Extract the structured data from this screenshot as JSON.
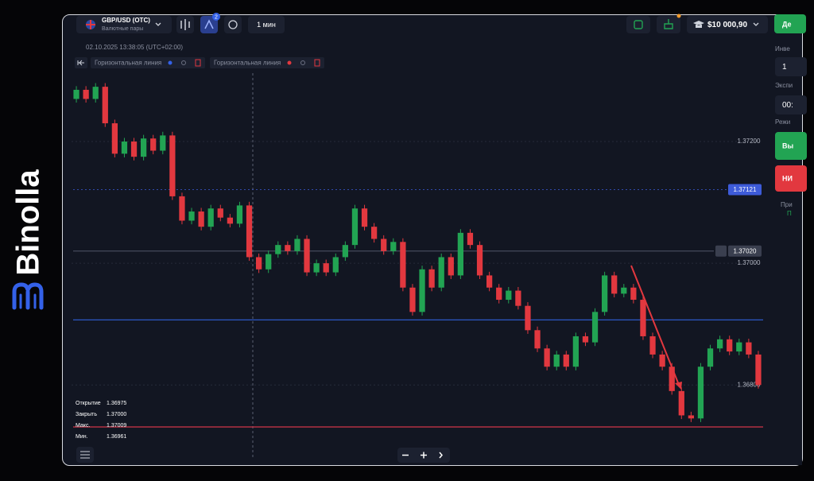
{
  "brand": {
    "name": "Binolla"
  },
  "top_bar": {
    "pair": "GBP/USD (OTC)",
    "pair_group": "Валютные пары",
    "badge": "2",
    "timeframe": "1 мин",
    "balance": "$10 000,90",
    "account_button": "Де"
  },
  "chart_header": {
    "datetime": "02.10.2025 13:38:05 (UTC+02:00)",
    "tools": [
      "Горизонтальная линия",
      "Горизонтальная линия"
    ]
  },
  "ohlc_info": {
    "rows": [
      [
        "Открытие",
        "1.36975"
      ],
      [
        "Закрыть",
        "1.37000"
      ],
      [
        "Макс.",
        "1.37009"
      ],
      [
        "Мин.",
        "1.36961"
      ]
    ]
  },
  "side_panel": {
    "investment_label": "Инве",
    "investment_value": "1",
    "expiry_label": "Экспи",
    "expiry_value": "00:",
    "mode_label": "Режи",
    "buy_button": "Вы",
    "sell_button": "НИ",
    "profit_label": "При",
    "profit_value": "П"
  },
  "chart_data": {
    "type": "candlestick",
    "up_color": "#22a453",
    "down_color": "#e2383f",
    "grid": true,
    "ylim": [
      1.36667,
      1.37315
    ],
    "yticks": [
      {
        "value": 1.372,
        "label": "1.37200"
      },
      {
        "value": 1.37,
        "label": "1.37000"
      },
      {
        "value": 1.368,
        "label": "1.36800"
      }
    ],
    "hlines": [
      {
        "value": 1.36907,
        "color": "#2f5fd8"
      },
      {
        "value": 1.36731,
        "color": "#d2354a"
      }
    ],
    "price_marker": {
      "value": 1.37121,
      "label": "1.37121",
      "color": "#3d5bd9"
    },
    "crosshair": {
      "value": 1.3702,
      "label": "1.37020"
    },
    "open": [
      1.3727,
      1.37285,
      1.3727,
      1.3729,
      1.3723,
      1.3718,
      1.372,
      1.37175,
      1.37205,
      1.37185,
      1.3721,
      1.3711,
      1.3707,
      1.37085,
      1.3706,
      1.3709,
      1.37075,
      1.37065,
      1.37095,
      1.3701,
      1.3699,
      1.37015,
      1.3703,
      1.3702,
      1.3704,
      1.36985,
      1.37,
      1.36985,
      1.3701,
      1.3703,
      1.3709,
      1.3706,
      1.3704,
      1.3702,
      1.37035,
      1.3696,
      1.3692,
      1.3699,
      1.3696,
      1.3701,
      1.3698,
      1.3705,
      1.3703,
      1.3698,
      1.3696,
      1.3694,
      1.36955,
      1.3693,
      1.3689,
      1.3686,
      1.3683,
      1.3685,
      1.3683,
      1.3688,
      1.3687,
      1.3692,
      1.3698,
      1.3695,
      1.3696,
      1.3694,
      1.3688,
      1.3685,
      1.3683,
      1.3679,
      1.3675,
      1.36745,
      1.3683,
      1.3686,
      1.36875,
      1.36855,
      1.3687,
      1.3685
    ],
    "high": [
      1.37291,
      1.37291,
      1.37296,
      1.37296,
      1.37236,
      1.37206,
      1.37206,
      1.37211,
      1.37211,
      1.37216,
      1.37216,
      1.37116,
      1.37091,
      1.37091,
      1.37096,
      1.37096,
      1.37081,
      1.37101,
      1.37101,
      1.37016,
      1.37021,
      1.37036,
      1.37036,
      1.37046,
      1.37046,
      1.37006,
      1.37006,
      1.37016,
      1.37036,
      1.37096,
      1.37096,
      1.37066,
      1.37046,
      1.37041,
      1.37041,
      1.36966,
      1.36996,
      1.36996,
      1.37016,
      1.37016,
      1.37056,
      1.37056,
      1.37036,
      1.36986,
      1.36966,
      1.36961,
      1.36961,
      1.36936,
      1.36896,
      1.36866,
      1.36856,
      1.36856,
      1.36886,
      1.36886,
      1.36926,
      1.36986,
      1.36986,
      1.36966,
      1.36966,
      1.36946,
      1.36886,
      1.36856,
      1.36836,
      1.36796,
      1.36756,
      1.36836,
      1.36866,
      1.36881,
      1.36881,
      1.36876,
      1.36876,
      1.36856
    ],
    "low": [
      1.37264,
      1.37264,
      1.37264,
      1.37224,
      1.37174,
      1.37174,
      1.37169,
      1.37169,
      1.37179,
      1.37179,
      1.37104,
      1.37064,
      1.37064,
      1.37054,
      1.37054,
      1.37069,
      1.37059,
      1.37059,
      1.37004,
      1.36984,
      1.36984,
      1.37009,
      1.37014,
      1.37014,
      1.36979,
      1.36979,
      1.36979,
      1.36979,
      1.37004,
      1.37024,
      1.37054,
      1.37034,
      1.37014,
      1.37014,
      1.36954,
      1.36914,
      1.36914,
      1.36954,
      1.36954,
      1.36974,
      1.36974,
      1.37024,
      1.36974,
      1.36954,
      1.36934,
      1.36934,
      1.36924,
      1.36884,
      1.36854,
      1.36824,
      1.36824,
      1.36824,
      1.36824,
      1.36864,
      1.36864,
      1.36914,
      1.36944,
      1.36944,
      1.36934,
      1.36874,
      1.36844,
      1.36824,
      1.36784,
      1.36744,
      1.36739,
      1.36739,
      1.36824,
      1.36854,
      1.36849,
      1.36849,
      1.36844,
      1.36794
    ],
    "close": [
      1.37285,
      1.3727,
      1.3729,
      1.3723,
      1.3718,
      1.372,
      1.37175,
      1.37205,
      1.37185,
      1.3721,
      1.3711,
      1.3707,
      1.37085,
      1.3706,
      1.3709,
      1.37075,
      1.37065,
      1.37095,
      1.3701,
      1.3699,
      1.37015,
      1.3703,
      1.3702,
      1.3704,
      1.36985,
      1.37,
      1.36985,
      1.3701,
      1.3703,
      1.3709,
      1.3706,
      1.3704,
      1.3702,
      1.37035,
      1.3696,
      1.3692,
      1.3699,
      1.3696,
      1.3701,
      1.3698,
      1.3705,
      1.3703,
      1.3698,
      1.3696,
      1.3694,
      1.36955,
      1.3693,
      1.3689,
      1.3686,
      1.3683,
      1.3685,
      1.3683,
      1.3688,
      1.3687,
      1.3692,
      1.3698,
      1.3695,
      1.3696,
      1.3694,
      1.3688,
      1.3685,
      1.3683,
      1.3679,
      1.3675,
      1.36745,
      1.3683,
      1.3686,
      1.36875,
      1.36855,
      1.3687,
      1.3685,
      1.368
    ]
  }
}
